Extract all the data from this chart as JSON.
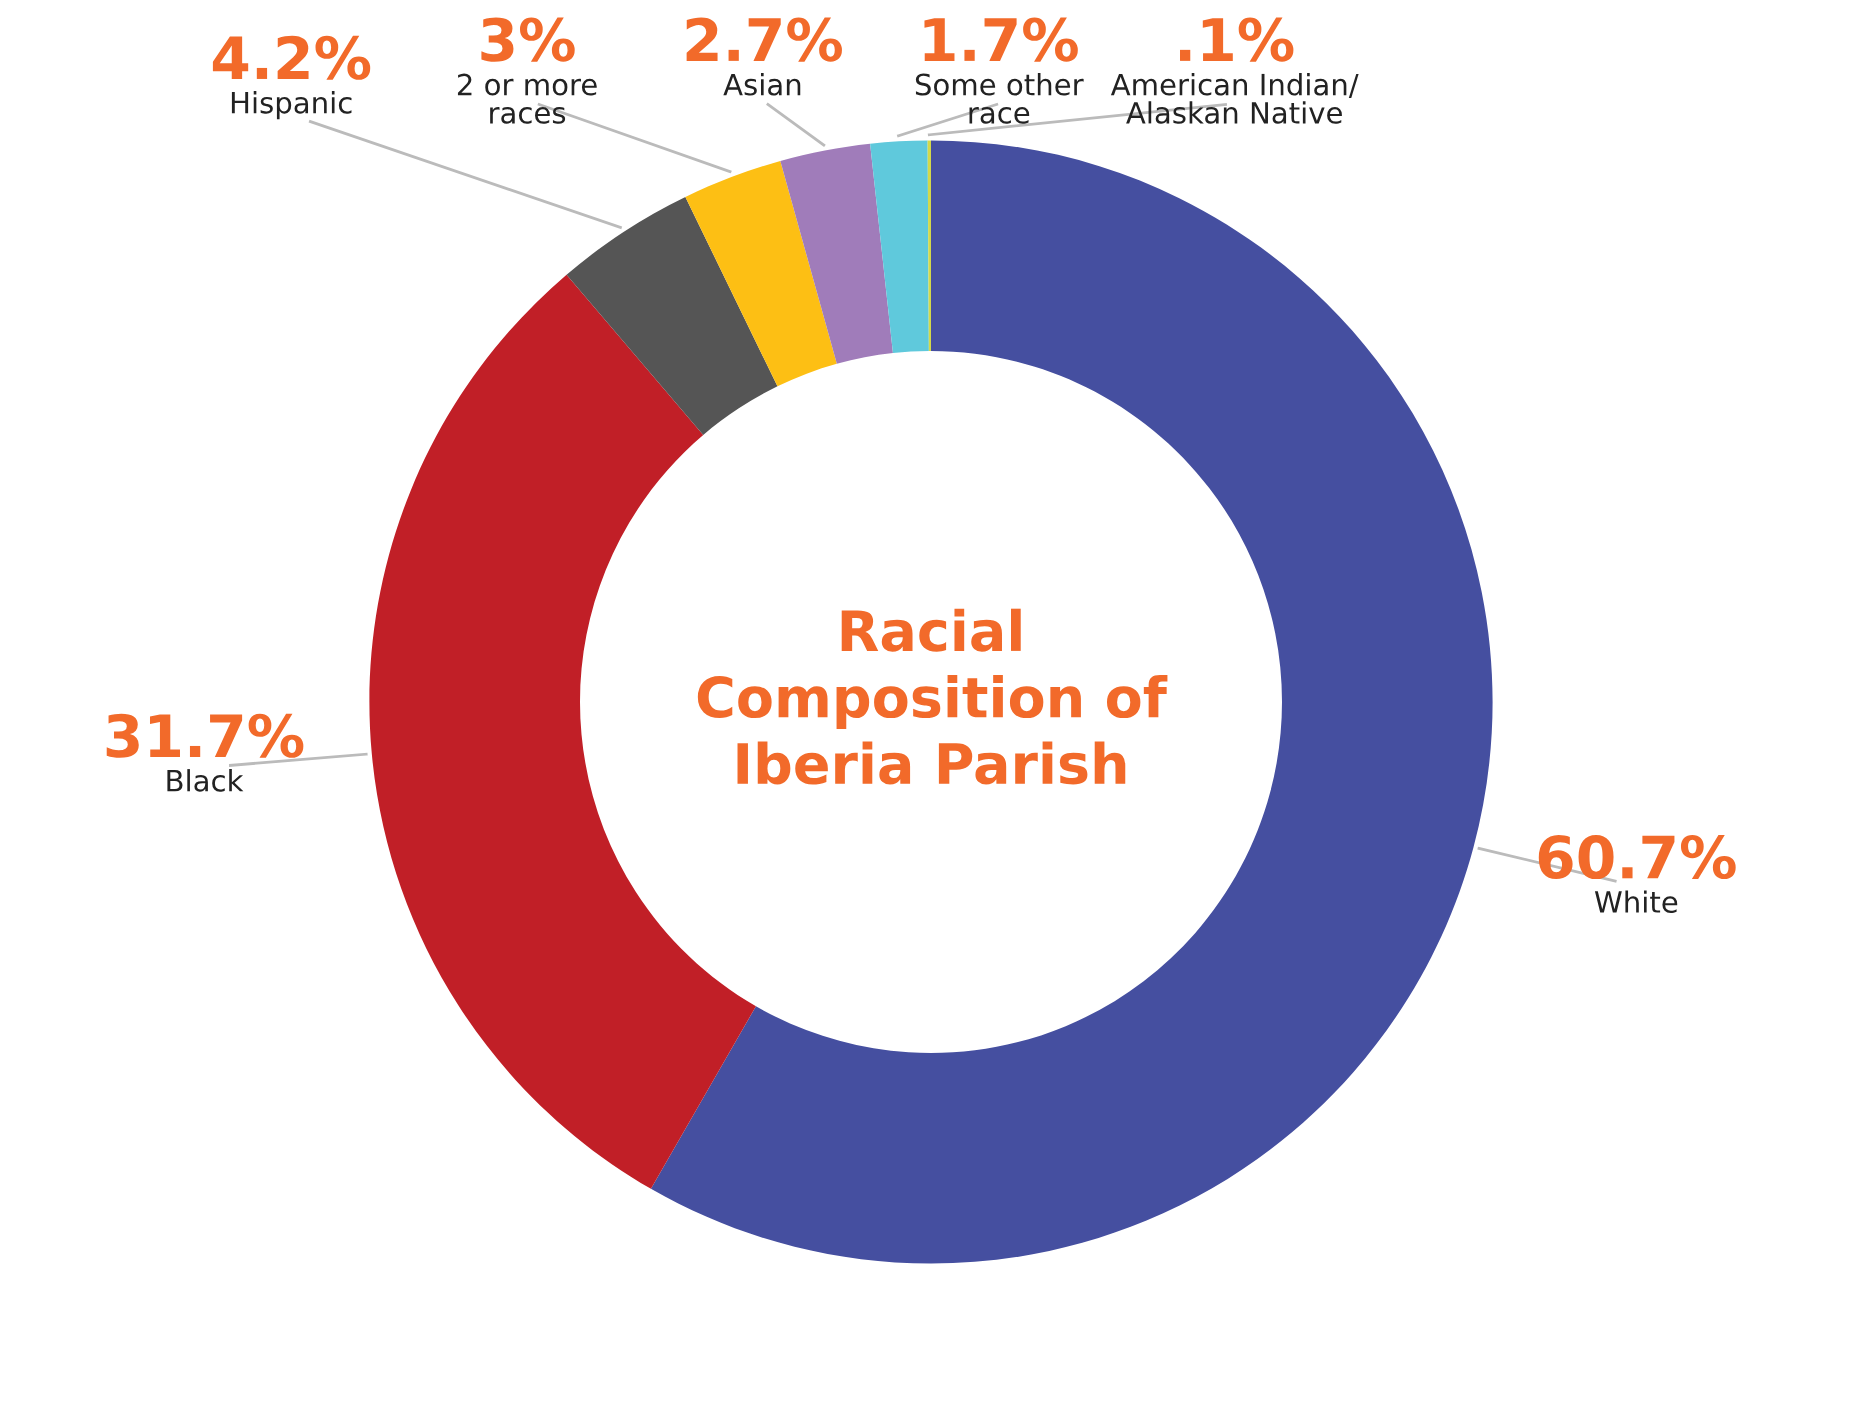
{
  "chart_data": {
    "type": "donut",
    "title": "Racial\nComposition of\nIberia Parish",
    "categories": [
      "White",
      "Black",
      "Hispanic",
      "2 or more\nraces",
      "Asian",
      "Some other\nrace",
      "American Indian/\nAlaskan Native"
    ],
    "values": [
      60.7,
      31.7,
      4.2,
      3,
      2.7,
      1.7,
      0.1
    ],
    "colors": [
      "#454fa0",
      "#c11f27",
      "#555555",
      "#fdbf14",
      "#a07cba",
      "#5fc9dc",
      "#d3d94a"
    ],
    "value_labels": [
      "60.7%",
      "31.7%",
      "4.2%",
      "3%",
      "2.7%",
      "1.7%",
      ".1%"
    ]
  }
}
